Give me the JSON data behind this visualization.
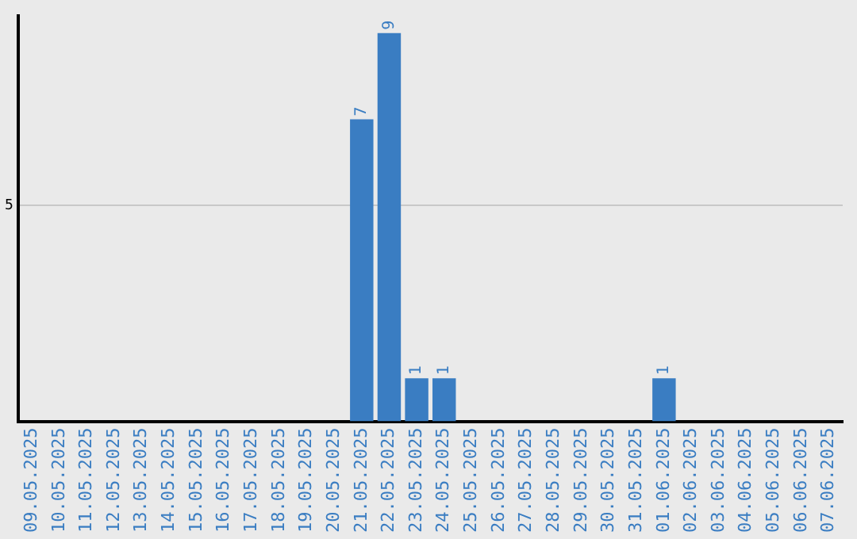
{
  "chart_data": {
    "type": "bar",
    "ylim": [
      0,
      9.4
    ],
    "categories": [
      "09.05.2025",
      "10.05.2025",
      "11.05.2025",
      "12.05.2025",
      "13.05.2025",
      "14.05.2025",
      "15.05.2025",
      "16.05.2025",
      "17.05.2025",
      "18.05.2025",
      "19.05.2025",
      "20.05.2025",
      "21.05.2025",
      "22.05.2025",
      "23.05.2025",
      "24.05.2025",
      "25.05.2025",
      "26.05.2025",
      "27.05.2025",
      "28.05.2025",
      "29.05.2025",
      "30.05.2025",
      "31.05.2025",
      "01.06.2025",
      "02.06.2025",
      "03.06.2025",
      "04.06.2025",
      "05.06.2025",
      "06.06.2025",
      "07.06.2025"
    ],
    "values": [
      null,
      null,
      null,
      null,
      null,
      null,
      null,
      null,
      null,
      null,
      null,
      null,
      7,
      9,
      1,
      1,
      null,
      null,
      null,
      null,
      null,
      null,
      null,
      1,
      null,
      null,
      null,
      null,
      null,
      null
    ],
    "value_labels": [
      null,
      null,
      null,
      null,
      null,
      null,
      null,
      null,
      null,
      null,
      null,
      null,
      "7",
      "9",
      "1",
      "1",
      null,
      null,
      null,
      null,
      null,
      null,
      null,
      "1",
      null,
      null,
      null,
      null,
      null,
      null
    ],
    "color": "#3a7dc2",
    "yticks": [
      5
    ],
    "grid": "y",
    "legend": false
  }
}
